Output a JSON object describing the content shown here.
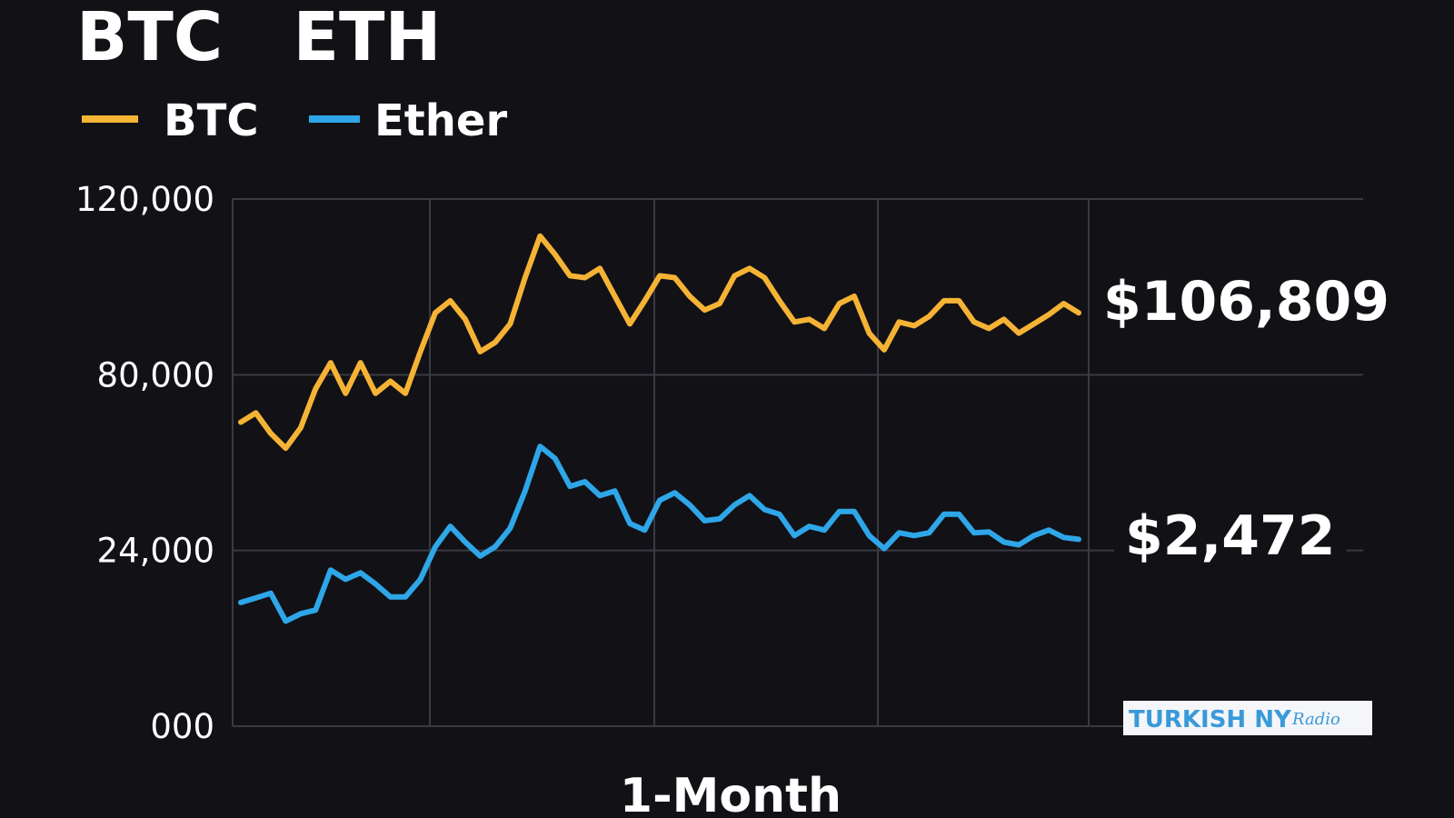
{
  "chart_data": {
    "type": "line",
    "title": "BTC   ETH",
    "x_label": "1-Month",
    "categories": [
      null,
      null,
      null,
      null,
      null,
      null,
      null,
      null,
      null,
      null,
      null,
      null,
      null,
      null,
      null,
      null,
      null,
      null,
      null,
      null,
      null,
      null,
      null,
      null,
      null,
      null,
      null,
      null,
      null,
      null,
      null,
      null,
      null,
      null,
      null,
      null,
      null,
      null,
      null,
      null,
      null,
      null,
      null,
      null,
      null,
      null,
      null,
      null,
      null,
      null,
      null,
      null,
      null,
      null,
      null,
      null,
      null
    ],
    "series": [
      {
        "name": "BTC",
        "color": "#f5b335",
        "values": [
          64900,
          67850,
          61330,
          56600,
          63110,
          75560,
          82740,
          74070,
          82740,
          74070,
          77930,
          74070,
          85260,
          94100,
          96840,
          92630,
          85260,
          87370,
          91580,
          102100,
          111580,
          107370,
          102530,
          102100,
          104210,
          97890,
          91580,
          96840,
          102530,
          102100,
          97890,
          94740,
          96210,
          102530,
          104210,
          102100,
          96840,
          92000,
          92630,
          90530,
          96210,
          97890,
          89470,
          85680,
          92000,
          91160,
          93260,
          96840,
          96840,
          92000,
          90530,
          92630,
          89470,
          91580,
          93680,
          96210,
          94100
        ]
      },
      {
        "name": "Ether",
        "color": "#2ea6e8",
        "values": [
          16890,
          17520,
          18160,
          14350,
          15360,
          15870,
          21330,
          20060,
          20950,
          19430,
          17650,
          17650,
          20060,
          25190,
          31700,
          26670,
          23240,
          25190,
          31110,
          42960,
          57190,
          53330,
          44440,
          45930,
          41480,
          42960,
          32590,
          30520,
          40000,
          42370,
          38520,
          33480,
          34070,
          38520,
          41480,
          37040,
          35560,
          28740,
          31700,
          30520,
          36440,
          36440,
          28740,
          24590,
          29630,
          28740,
          29630,
          35560,
          35560,
          29630,
          29930,
          26670,
          25780,
          28740,
          30520,
          28150,
          27560
        ]
      }
    ],
    "annotations": [
      "$106,809",
      "$2,472"
    ],
    "watermark": [
      "TURKISH NY",
      "Radio"
    ],
    "ylim": [
      0,
      120000
    ],
    "yticks": [
      {
        "value": 0,
        "label": "000"
      },
      {
        "value": 24000,
        "label": "24,000"
      },
      {
        "value": 80000,
        "label": "80,000"
      },
      {
        "value": 120000,
        "label": "120,000"
      }
    ],
    "grid": true,
    "legend": "top-left"
  }
}
